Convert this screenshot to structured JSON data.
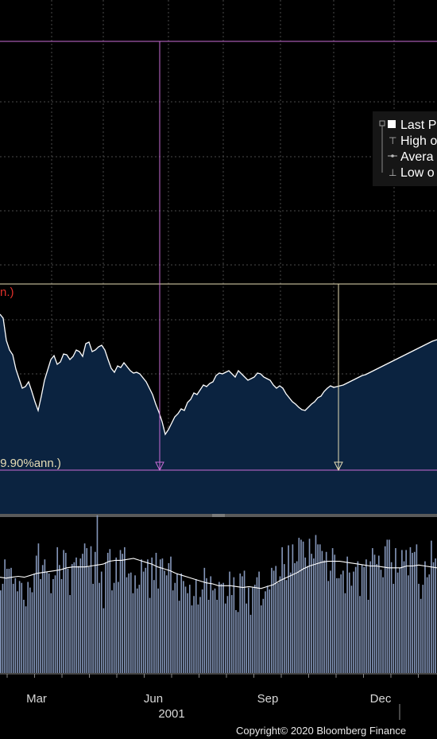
{
  "chart_data": {
    "type": "line",
    "legend": {
      "position": "top-right",
      "entries": [
        "Last P",
        "High o",
        "Avera",
        "Low o"
      ]
    },
    "annotations": {
      "top_right_label": "n.)",
      "bottom_left_label": ".9.90%ann.)"
    },
    "x_ticks": [
      "Mar",
      "Jun",
      "Sep",
      "Dec"
    ],
    "year_label": "2001",
    "price_series": {
      "x": [
        0,
        4,
        8,
        12,
        16,
        20,
        24,
        28,
        32,
        36,
        40,
        44,
        48,
        52,
        56,
        60,
        64,
        68,
        72,
        76,
        80,
        84,
        88,
        92,
        96,
        100,
        104,
        108,
        112,
        116,
        120,
        124,
        128,
        132,
        136,
        140,
        144,
        148,
        152,
        156,
        160,
        164,
        168,
        172,
        176,
        180,
        184,
        188,
        192,
        196,
        200,
        204,
        208,
        212,
        216,
        220,
        224,
        228,
        232,
        236,
        240,
        244,
        248,
        252,
        256,
        260,
        264,
        268,
        272,
        276,
        280,
        284,
        288,
        292,
        296,
        300,
        304,
        308,
        312,
        316,
        320,
        324,
        328,
        332,
        336,
        340,
        344,
        348,
        352,
        356,
        360,
        364,
        368,
        372,
        376,
        380,
        384,
        388,
        392,
        396,
        400,
        404,
        408,
        412,
        416,
        420,
        424,
        428,
        432,
        436,
        440,
        444,
        448,
        452,
        456,
        460,
        464,
        468,
        472,
        476,
        480,
        484,
        488,
        492,
        496,
        500,
        504,
        508,
        512,
        516,
        520,
        524,
        528,
        532,
        536,
        540,
        544,
        550
      ],
      "y": [
        395,
        400,
        428,
        440,
        446,
        464,
        476,
        488,
        486,
        480,
        492,
        505,
        516,
        498,
        478,
        465,
        452,
        447,
        458,
        455,
        445,
        446,
        452,
        448,
        440,
        442,
        448,
        432,
        430,
        442,
        440,
        436,
        434,
        440,
        452,
        463,
        468,
        460,
        462,
        456,
        461,
        466,
        469,
        468,
        470,
        475,
        480,
        488,
        496,
        508,
        518,
        530,
        546,
        540,
        532,
        524,
        520,
        514,
        516,
        506,
        502,
        494,
        496,
        490,
        484,
        486,
        482,
        480,
        472,
        469,
        470,
        468,
        466,
        470,
        474,
        466,
        470,
        474,
        478,
        476,
        474,
        469,
        470,
        474,
        476,
        478,
        484,
        488,
        485,
        488,
        495,
        500,
        505,
        508,
        512,
        515,
        516,
        512,
        508,
        505,
        500,
        498,
        492,
        488,
        485,
        487,
        486,
        485,
        484,
        482,
        480,
        478,
        476,
        474,
        472,
        471,
        469,
        467,
        465,
        463,
        461,
        459,
        457,
        455,
        453,
        451,
        449,
        447,
        445,
        443,
        441,
        439,
        437,
        435,
        433,
        431,
        429,
        427
      ]
    },
    "volume_bars": [
      0.88,
      0.95,
      1.21,
      1.11,
      1.11,
      1.12,
      0.95,
      1.01,
      0.87,
      0.98,
      0.96,
      0.78,
      0.71,
      0.97,
      0.91,
      0.86,
      1.06,
      1.25,
      1.38,
      1.0,
      1.15,
      1.21,
      1.08,
      1.06,
      0.85,
      1.0,
      1.04,
      1.34,
      1.15,
      1.0,
      1.31,
      1.28,
      1.11,
      0.83,
      1.16,
      1.18,
      1.23,
      1.14,
      1.22,
      1.27,
      1.38,
      1.33,
      1.13,
      1.35,
      0.95,
      1.29,
      1.68,
      0.96,
      1.08,
      0.69,
      1.18,
      1.28,
      1.32,
      0.88,
      0.96,
      1.23,
      0.97,
      1.31,
      1.27,
      1.34,
      1.02,
      1.06,
      1.07,
      0.85,
      1.04,
      0.9,
      0.94,
      1.21,
      1.08,
      1.12,
      1.21,
      0.8,
      1.23,
      0.99,
      1.28,
      0.9,
      1.21,
      1.22,
      1.09,
      1.04,
      1.17,
      1.24,
      0.88,
      0.96,
      1.06,
      0.77,
      1.06,
      0.98,
      0.92,
      0.85,
      0.94,
      0.72,
      0.82,
      1.0,
      0.73,
      0.81,
      0.89,
      1.12,
      1.01,
      0.78,
      1.03,
      0.88,
      0.9,
      0.78,
      0.97,
      0.95,
      0.96,
      0.74,
      0.82,
      1.08,
      0.83,
      1.02,
      0.67,
      0.65,
      1.06,
      1.03,
      1.09,
      0.74,
      0.91,
      0.62,
      0.91,
      0.94,
      1.02,
      1.08,
      0.72,
      0.79,
      0.87,
      0.93,
      0.89,
      1.12,
      1.09,
      1.14,
      0.96,
      1.03,
      1.34,
      1.16,
      0.99,
      1.36,
      1.07,
      1.37,
      1.17,
      1.19,
      1.44,
      1.42,
      1.4,
      1.23,
      1.14,
      1.43,
      1.27,
      1.22,
      1.47,
      1.37,
      1.37,
      1.3,
      1.2,
      1.29,
      0.98,
      1.09,
      1.33,
      1.26,
      1.01,
      1.01,
      1.05,
      1.09,
      0.85,
      1.24,
      1.07,
      0.93,
      1.08,
      1.13,
      1.19,
      0.82,
      1.15,
      1.13,
      1.21,
      0.78,
      1.19,
      1.33,
      1.26,
      1.16,
      1.25,
      1.1,
      1.02,
      1.35,
      1.42,
      1.42,
      1.18,
      0.95,
      1.33,
      1.07,
      1.12,
      1.31,
      1.19,
      1.31,
      1.04,
      1.34,
      1.28,
      1.29,
      1.37,
      0.95,
      0.79,
      0.94,
      1.19,
      1.02,
      1.05,
      1.41,
      1.18,
      1.22
    ],
    "volume_ma": [
      1.02,
      1.01,
      1.02,
      1.03,
      1.02,
      1.04,
      1.06,
      1.07,
      1.08,
      1.09,
      1.1,
      1.12,
      1.13,
      1.13,
      1.13,
      1.14,
      1.15,
      1.16,
      1.19,
      1.2,
      1.2,
      1.21,
      1.22,
      1.2,
      1.18,
      1.16,
      1.13,
      1.11,
      1.09,
      1.06,
      1.04,
      1.02,
      1.0,
      0.98,
      0.96,
      0.95,
      0.93,
      0.93,
      0.93,
      0.92,
      0.91,
      0.92,
      0.91,
      0.9,
      0.92,
      0.94,
      0.98,
      1.01,
      1.04,
      1.07,
      1.11,
      1.14,
      1.16,
      1.18,
      1.19,
      1.19,
      1.19,
      1.18,
      1.17,
      1.16,
      1.15,
      1.14,
      1.14,
      1.13,
      1.12,
      1.12,
      1.12,
      1.14,
      1.14,
      1.15,
      1.14,
      1.13,
      1.12
    ]
  },
  "copyright": "Copyright© 2020 Bloomberg Finance"
}
